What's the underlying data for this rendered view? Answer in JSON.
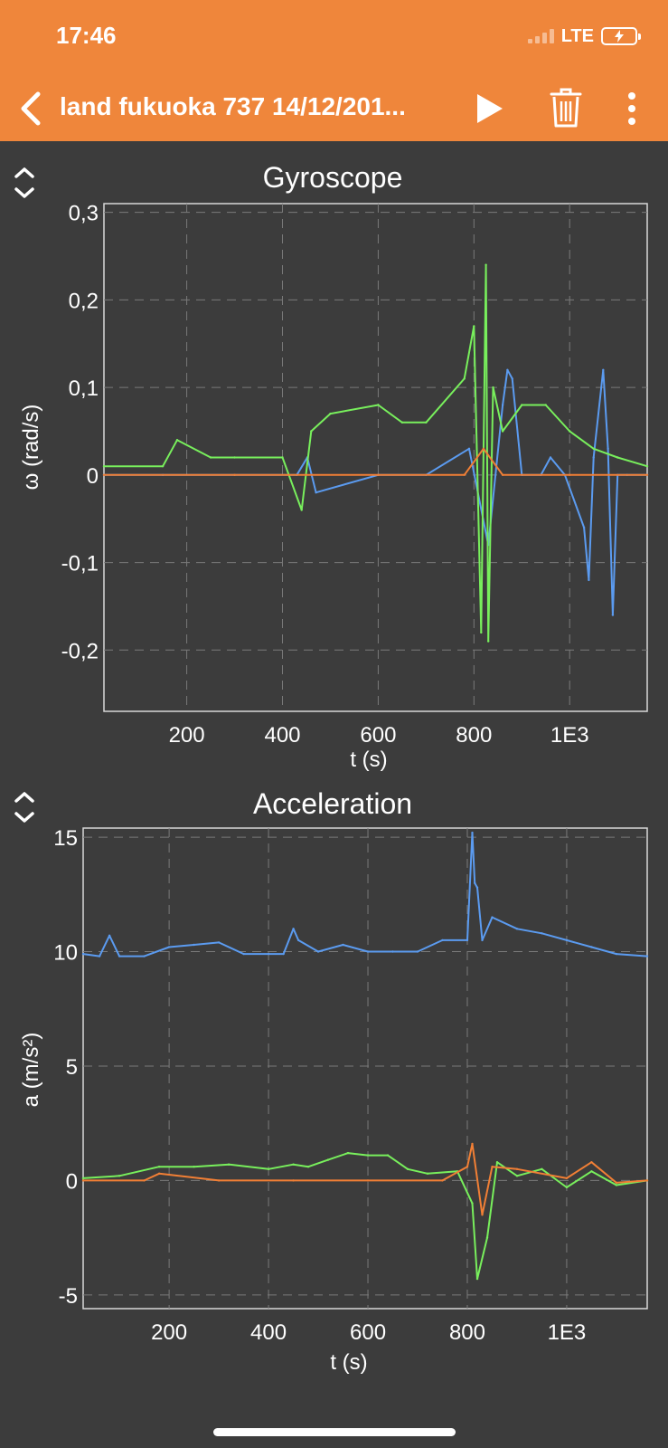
{
  "status_bar": {
    "time": "17:46",
    "network": "LTE",
    "signal_icon": "signal-bars-icon",
    "battery_icon": "battery-charging-icon"
  },
  "header": {
    "title": "land fukuoka 737 14/12/201...",
    "back_icon": "chevron-left-icon",
    "play_icon": "play-icon",
    "delete_icon": "trash-icon",
    "more_icon": "more-vertical-icon",
    "background_color": "#ef863b"
  },
  "chart_data": [
    {
      "type": "line",
      "title": "Gyroscope",
      "xlabel": "t (s)",
      "ylabel": "ω (rad/s)",
      "xlim": [
        27,
        1162
      ],
      "ylim": [
        -0.27,
        0.31
      ],
      "x_ticks": [
        200,
        400,
        600,
        800,
        1000
      ],
      "x_tick_labels": [
        "200",
        "400",
        "600",
        "800",
        "1E3"
      ],
      "y_ticks": [
        0.3,
        0.2,
        0.1,
        0,
        -0.1,
        -0.2
      ],
      "y_tick_labels": [
        "0,3",
        "0,2",
        "0,1",
        "0",
        "-0,1",
        "-0,2"
      ],
      "grid": true,
      "series": [
        {
          "color": "#5b9bf0",
          "x": [
            27,
            150,
            300,
            430,
            452,
            470,
            600,
            700,
            790,
            830,
            860,
            870,
            880,
            900,
            940,
            960,
            990,
            1030,
            1040,
            1050,
            1070,
            1080,
            1090,
            1100,
            1120,
            1162
          ],
          "values": [
            0,
            0,
            0,
            0,
            0.02,
            -0.02,
            0,
            0,
            0.03,
            -0.08,
            0.08,
            0.12,
            0.11,
            0,
            0,
            0.02,
            0,
            -0.06,
            -0.12,
            0.02,
            0.12,
            0.03,
            -0.16,
            0,
            0,
            0
          ]
        },
        {
          "color": "#78ef5c",
          "x": [
            27,
            150,
            180,
            250,
            300,
            400,
            440,
            460,
            500,
            600,
            650,
            700,
            780,
            800,
            815,
            825,
            830,
            840,
            860,
            900,
            950,
            1000,
            1050,
            1100,
            1162
          ],
          "values": [
            0.01,
            0.01,
            0.04,
            0.02,
            0.02,
            0.02,
            -0.04,
            0.05,
            0.07,
            0.08,
            0.06,
            0.06,
            0.11,
            0.17,
            -0.18,
            0.24,
            -0.19,
            0.1,
            0.05,
            0.08,
            0.08,
            0.05,
            0.03,
            0.02,
            0.01
          ]
        },
        {
          "color": "#f17f35",
          "x": [
            27,
            300,
            600,
            780,
            820,
            860,
            1000,
            1162
          ],
          "values": [
            0,
            0,
            0,
            0,
            0.03,
            0,
            0,
            0
          ]
        }
      ]
    },
    {
      "type": "line",
      "title": "Acceleration",
      "xlabel": "t (s)",
      "ylabel": "a (m/s²)",
      "xlim": [
        27,
        1162
      ],
      "ylim": [
        -5.6,
        15.4
      ],
      "x_ticks": [
        200,
        400,
        600,
        800,
        1000
      ],
      "x_tick_labels": [
        "200",
        "400",
        "600",
        "800",
        "1E3"
      ],
      "y_ticks": [
        15,
        10,
        5,
        0,
        -5
      ],
      "y_tick_labels": [
        "15",
        "10",
        "5",
        "0",
        "-5"
      ],
      "grid": true,
      "series": [
        {
          "color": "#5b9bf0",
          "x": [
            27,
            60,
            80,
            100,
            150,
            200,
            250,
            300,
            350,
            400,
            430,
            450,
            460,
            500,
            550,
            600,
            650,
            700,
            750,
            800,
            810,
            815,
            820,
            830,
            850,
            900,
            950,
            1000,
            1050,
            1100,
            1162
          ],
          "values": [
            9.9,
            9.8,
            10.7,
            9.8,
            9.8,
            10.2,
            10.3,
            10.4,
            9.9,
            9.9,
            9.9,
            11.0,
            10.5,
            10.0,
            10.3,
            10.0,
            10.0,
            10.0,
            10.5,
            10.5,
            15.2,
            13.0,
            12.8,
            10.5,
            11.5,
            11.0,
            10.8,
            10.5,
            10.2,
            9.9,
            9.8
          ]
        },
        {
          "color": "#78ef5c",
          "x": [
            27,
            100,
            180,
            250,
            320,
            400,
            450,
            480,
            520,
            560,
            600,
            640,
            680,
            720,
            780,
            810,
            820,
            840,
            860,
            900,
            950,
            1000,
            1050,
            1100,
            1162
          ],
          "values": [
            0.1,
            0.2,
            0.6,
            0.6,
            0.7,
            0.5,
            0.7,
            0.6,
            0.9,
            1.2,
            1.1,
            1.1,
            0.5,
            0.3,
            0.4,
            -1.0,
            -4.3,
            -2.5,
            0.8,
            0.2,
            0.5,
            -0.3,
            0.4,
            -0.2,
            0.0
          ]
        },
        {
          "color": "#f17f35",
          "x": [
            27,
            150,
            180,
            300,
            450,
            600,
            750,
            800,
            810,
            830,
            850,
            900,
            1000,
            1050,
            1100,
            1162
          ],
          "values": [
            0,
            0,
            0.3,
            0,
            0,
            0,
            0,
            0.6,
            1.6,
            -1.5,
            0.6,
            0.5,
            0.1,
            0.8,
            -0.1,
            0
          ]
        }
      ]
    }
  ]
}
